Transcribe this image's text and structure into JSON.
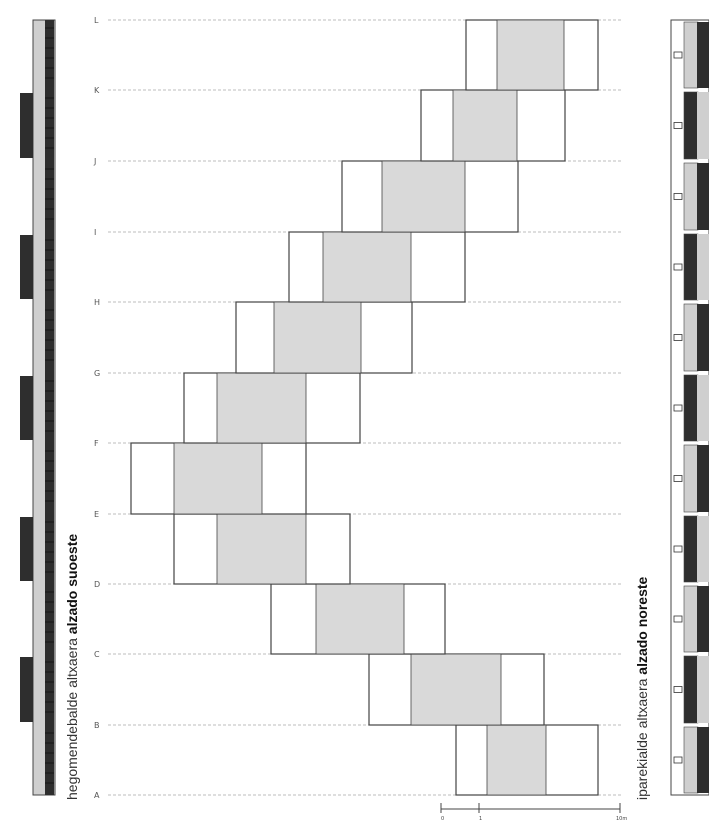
{
  "levels": [
    "A",
    "B",
    "C",
    "D",
    "E",
    "F",
    "G",
    "H",
    "I",
    "J",
    "K",
    "L"
  ],
  "elevation_left": {
    "prefix": "hegomendebalde altxaera",
    "bold": "alzado suoeste"
  },
  "elevation_right": {
    "prefix": "iparekialde altxaera",
    "bold": "alzado noreste"
  },
  "scale_labels": [
    "0",
    "1",
    "10m"
  ],
  "colors": {
    "line": "#444444",
    "fill_gray": "#d9d9d9",
    "dark": "#2e2e2e",
    "light": "#cfcfcf",
    "grid": "#bdbdbd"
  }
}
